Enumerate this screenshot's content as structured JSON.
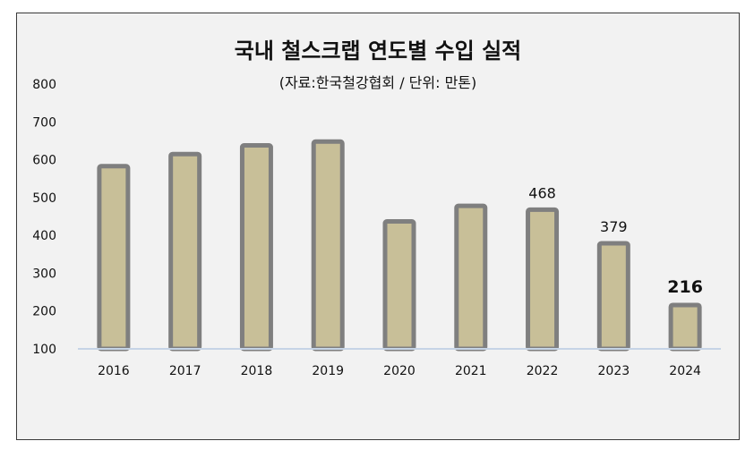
{
  "chart_data": {
    "type": "bar",
    "title": "국내 철스크랩 연도별 수입 실적",
    "subtitle": "(자료:한국철강협회 / 단위: 만톤)",
    "categories": [
      "2016",
      "2017",
      "2018",
      "2019",
      "2020",
      "2021",
      "2022",
      "2023",
      "2024"
    ],
    "values": [
      583,
      615,
      638,
      648,
      437,
      478,
      468,
      379,
      216
    ],
    "data_labels": [
      "",
      "",
      "",
      "",
      "",
      "",
      "468",
      "379",
      "216"
    ],
    "emphasized_label": "216",
    "ylim": [
      100,
      800
    ],
    "yticks": [
      100,
      200,
      300,
      400,
      500,
      600,
      700,
      800
    ],
    "grid": false,
    "legend": "none",
    "xlabel": "",
    "ylabel": "",
    "colors": {
      "bar_fill": "#c8bf98",
      "bar_border": "#7f7f7f",
      "baseline": "#c6d4e6",
      "background": "#f2f2f2"
    }
  }
}
